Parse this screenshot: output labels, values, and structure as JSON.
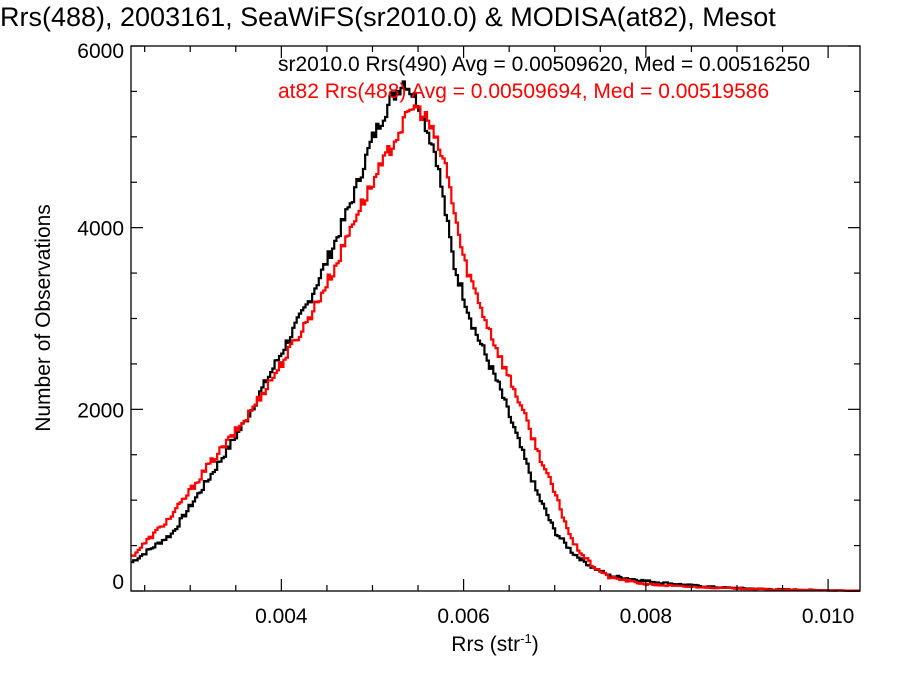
{
  "chart_data": {
    "type": "line",
    "title": "Rrs(488), 2003161, SeaWiFS(sr2010.0) & MODISA(at82), Mesot",
    "xlabel_main": "Rrs (str",
    "xlabel_sup": "-1",
    "xlabel_end": ")",
    "ylabel": "Number of Observations",
    "xlim": [
      0.00235,
      0.01035
    ],
    "ylim": [
      0,
      6000
    ],
    "xticks": [
      0.004,
      0.006,
      0.008,
      0.01
    ],
    "xtick_labels": [
      "0.004",
      "0.006",
      "0.008",
      "0.010"
    ],
    "yticks": [
      0,
      2000,
      4000,
      6000
    ],
    "ytick_labels": [
      "0",
      "2000",
      "4000",
      "6000"
    ],
    "grid": false,
    "legend_position": "top-right",
    "series": [
      {
        "name": "sr2010.0 Rrs(490) Avg = 0.00509620, Med = 0.00516250",
        "color": "#000000",
        "points": [
          [
            0.00235,
            310
          ],
          [
            0.0028,
            630
          ],
          [
            0.0032,
            1230
          ],
          [
            0.0036,
            1860
          ],
          [
            0.004,
            2620
          ],
          [
            0.0043,
            3180
          ],
          [
            0.0046,
            3860
          ],
          [
            0.0048,
            4370
          ],
          [
            0.005,
            4980
          ],
          [
            0.0052,
            5400
          ],
          [
            0.00535,
            5620
          ],
          [
            0.0055,
            5380
          ],
          [
            0.0057,
            4800
          ],
          [
            0.0059,
            3580
          ],
          [
            0.0061,
            2930
          ],
          [
            0.0064,
            2230
          ],
          [
            0.0066,
            1660
          ],
          [
            0.0068,
            1100
          ],
          [
            0.007,
            660
          ],
          [
            0.0072,
            420
          ],
          [
            0.0074,
            270
          ],
          [
            0.0076,
            170
          ],
          [
            0.008,
            110
          ],
          [
            0.0084,
            70
          ],
          [
            0.0088,
            40
          ],
          [
            0.0092,
            25
          ],
          [
            0.0096,
            15
          ],
          [
            0.01,
            8
          ],
          [
            0.01035,
            3
          ]
        ]
      },
      {
        "name": "at82 Rrs(488) Avg = 0.00509694, Med = 0.00519586",
        "color": "#ff0000",
        "points": [
          [
            0.00235,
            370
          ],
          [
            0.0028,
            830
          ],
          [
            0.0032,
            1380
          ],
          [
            0.0036,
            1880
          ],
          [
            0.004,
            2500
          ],
          [
            0.0043,
            3000
          ],
          [
            0.0046,
            3580
          ],
          [
            0.0048,
            4100
          ],
          [
            0.005,
            4480
          ],
          [
            0.0052,
            4880
          ],
          [
            0.00545,
            5350
          ],
          [
            0.0056,
            5200
          ],
          [
            0.0058,
            4700
          ],
          [
            0.006,
            3660
          ],
          [
            0.0062,
            3100
          ],
          [
            0.0064,
            2580
          ],
          [
            0.0066,
            2120
          ],
          [
            0.0068,
            1580
          ],
          [
            0.007,
            1080
          ],
          [
            0.0072,
            530
          ],
          [
            0.0074,
            290
          ],
          [
            0.0076,
            150
          ],
          [
            0.008,
            75
          ],
          [
            0.0084,
            50
          ],
          [
            0.0088,
            35
          ],
          [
            0.0092,
            22
          ],
          [
            0.0096,
            12
          ],
          [
            0.01,
            6
          ],
          [
            0.01035,
            2
          ]
        ]
      }
    ]
  }
}
